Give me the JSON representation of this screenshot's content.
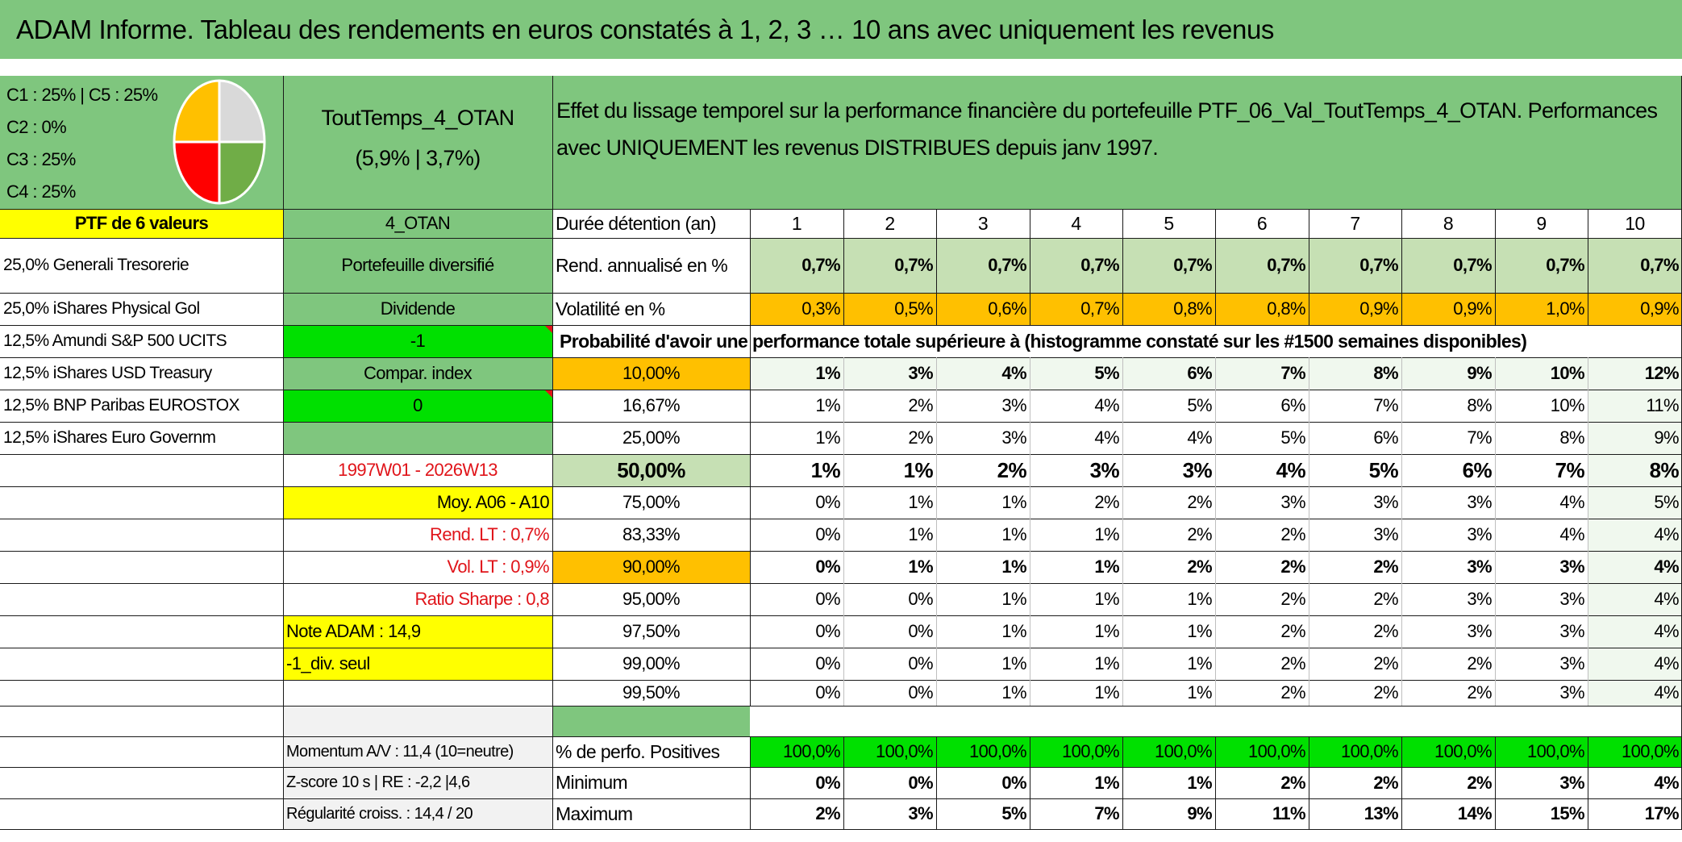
{
  "title": "ADAM Informe. Tableau des rendements en euros constatés à 1, 2, 3 … 10 ans avec uniquement les revenus",
  "allocation": {
    "lines": [
      "C1 : 25% | C5 : 25%",
      "C2 : 0%",
      "C3 : 25%",
      "C4 : 25%"
    ],
    "pie_colors": [
      "#d9d9d9",
      "#70ad47",
      "#ff0000",
      "#ffc000"
    ],
    "pie_values": [
      25,
      25,
      25,
      25
    ]
  },
  "portfolio": {
    "name": "ToutTemps_4_OTAN",
    "returns": "(5,9% | 3,7%)",
    "description": "Effet du lissage temporel sur la performance financière du portefeuille PTF_06_Val_ToutTemps_4_OTAN. Performances avec UNIQUEMENT les revenus DISTRIBUES depuis janv 1997.",
    "label_values": "PTF de 6 valeurs",
    "code": "4_OTAN",
    "type": "Portefeuille diversifié",
    "income": "Dividende",
    "field1": "-1",
    "compar": "Compar. index",
    "field2": "0",
    "period": "1997W01 - 2026W13",
    "moy": "Moy. A06 - A10",
    "rend_lt": "Rend. LT : 0,7%",
    "vol_lt": "Vol. LT : 0,9%",
    "sharpe": "Ratio Sharpe : 0,8",
    "note": "Note ADAM : 14,9",
    "div": "-1_div. seul",
    "momentum": "Momentum A/V : 11,4 (10=neutre)",
    "zscore": "Z-score 10 s | RE : -2,2 |4,6",
    "regularite": "Régularité croiss. : 14,4 / 20"
  },
  "holdings": [
    "25,0% Generali Tresorerie",
    "25,0% iShares Physical Gol",
    "12,5% Amundi S&P 500 UCITS",
    "12,5% iShares USD Treasury",
    "12,5% BNP Paribas EUROSTOX",
    "12,5% iShares Euro Governm"
  ],
  "table": {
    "duration_label": "Durée détention (an)",
    "years": [
      "1",
      "2",
      "3",
      "4",
      "5",
      "6",
      "7",
      "8",
      "9",
      "10"
    ],
    "rend_label": "Rend. annualisé en %",
    "rend": [
      "0,7%",
      "0,7%",
      "0,7%",
      "0,7%",
      "0,7%",
      "0,7%",
      "0,7%",
      "0,7%",
      "0,7%",
      "0,7%"
    ],
    "vol_label": "Volatilité en %",
    "vol": [
      "0,3%",
      "0,5%",
      "0,6%",
      "0,7%",
      "0,8%",
      "0,8%",
      "0,9%",
      "0,9%",
      "1,0%",
      "0,9%"
    ],
    "prob_label": "Probabilité d'avoir une performance totale supérieure à (histogramme constaté sur les #1500 semaines disponibles)",
    "quantiles": [
      {
        "q": "10,00%",
        "v": [
          "1%",
          "3%",
          "4%",
          "5%",
          "6%",
          "7%",
          "8%",
          "9%",
          "10%",
          "12%"
        ]
      },
      {
        "q": "16,67%",
        "v": [
          "1%",
          "2%",
          "3%",
          "4%",
          "5%",
          "6%",
          "7%",
          "8%",
          "10%",
          "11%"
        ]
      },
      {
        "q": "25,00%",
        "v": [
          "1%",
          "2%",
          "3%",
          "4%",
          "4%",
          "5%",
          "6%",
          "7%",
          "8%",
          "9%"
        ]
      },
      {
        "q": "50,00%",
        "v": [
          "1%",
          "1%",
          "2%",
          "3%",
          "3%",
          "4%",
          "5%",
          "6%",
          "7%",
          "8%"
        ]
      },
      {
        "q": "75,00%",
        "v": [
          "0%",
          "1%",
          "1%",
          "2%",
          "2%",
          "3%",
          "3%",
          "3%",
          "4%",
          "5%"
        ]
      },
      {
        "q": "83,33%",
        "v": [
          "0%",
          "1%",
          "1%",
          "1%",
          "2%",
          "2%",
          "3%",
          "3%",
          "4%",
          "4%"
        ]
      },
      {
        "q": "90,00%",
        "v": [
          "0%",
          "1%",
          "1%",
          "1%",
          "2%",
          "2%",
          "2%",
          "3%",
          "3%",
          "4%"
        ]
      },
      {
        "q": "95,00%",
        "v": [
          "0%",
          "0%",
          "1%",
          "1%",
          "1%",
          "2%",
          "2%",
          "3%",
          "3%",
          "4%"
        ]
      },
      {
        "q": "97,50%",
        "v": [
          "0%",
          "0%",
          "1%",
          "1%",
          "1%",
          "2%",
          "2%",
          "3%",
          "3%",
          "4%"
        ]
      },
      {
        "q": "99,00%",
        "v": [
          "0%",
          "0%",
          "1%",
          "1%",
          "1%",
          "2%",
          "2%",
          "2%",
          "3%",
          "4%"
        ]
      },
      {
        "q": "99,50%",
        "v": [
          "0%",
          "0%",
          "1%",
          "1%",
          "1%",
          "2%",
          "2%",
          "2%",
          "3%",
          "4%"
        ]
      }
    ],
    "pos_label": "% de perfo. Positives",
    "pos": [
      "100,0%",
      "100,0%",
      "100,0%",
      "100,0%",
      "100,0%",
      "100,0%",
      "100,0%",
      "100,0%",
      "100,0%",
      "100,0%"
    ],
    "min_label": "Minimum",
    "min": [
      "0%",
      "0%",
      "0%",
      "1%",
      "1%",
      "2%",
      "2%",
      "2%",
      "3%",
      "4%"
    ],
    "max_label": "Maximum",
    "max": [
      "2%",
      "3%",
      "5%",
      "7%",
      "9%",
      "11%",
      "13%",
      "14%",
      "15%",
      "17%"
    ]
  },
  "colors": {
    "green": "#7fc67e",
    "light_green": "#c6e0b4",
    "pale_green": "#f0f8ee",
    "orange": "#ffc000",
    "yellow": "#ffff00",
    "bright_green": "#00e000",
    "grey": "#f2f2f2",
    "red_text": "#e0141a"
  }
}
